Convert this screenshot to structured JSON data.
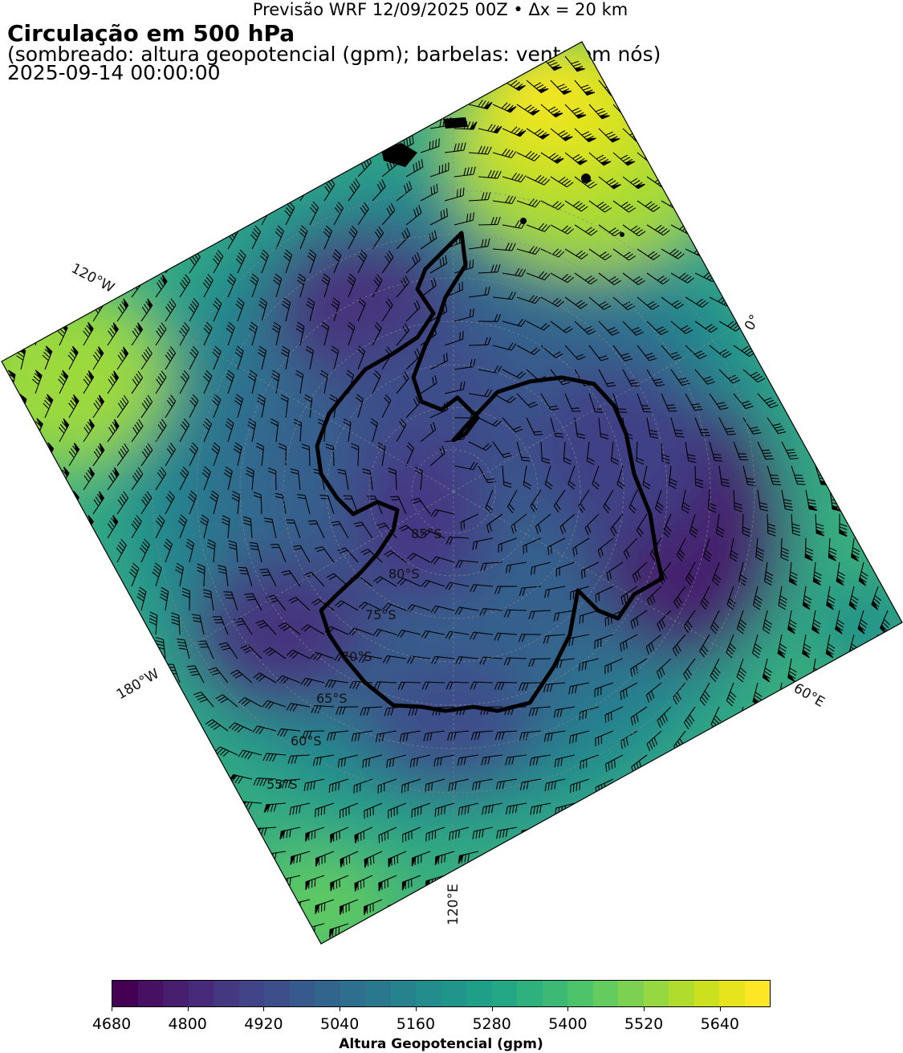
{
  "header": {
    "forecast": "Previsão WRF 12/09/2025 00Z • Δx = 20 km",
    "title": "Circulação em 500 hPa",
    "subtitle": "(sombreado: altura geopotencial (gpm); barbelas: vento em nós)",
    "valid_time": "2025-09-14 00:00:00"
  },
  "map": {
    "projection": "south polar stereographic",
    "longitude_labels": [
      "120°W",
      "0°",
      "60°E",
      "180°W",
      "120°E"
    ],
    "latitude_labels": [
      "85°S",
      "80°S",
      "75°S",
      "70°S",
      "65°S",
      "60°S",
      "55°S"
    ],
    "field": "500 hPa geopotential height",
    "highs": [
      "Atlantic sector (yellow, >5640 gpm)"
    ],
    "lows": [
      "Antarctic Peninsula / Weddell trough",
      "East Antarctica trough near 60°E"
    ]
  },
  "colorbar": {
    "label": "Altura Geopotencial (gpm)",
    "ticks": [
      "4680",
      "4800",
      "4920",
      "5040",
      "5160",
      "5280",
      "5400",
      "5520",
      "5640"
    ],
    "range": [
      4680,
      5720
    ],
    "step": 40,
    "colormap": "viridis",
    "colors": [
      "#440154",
      "#48186a",
      "#472d7b",
      "#424086",
      "#3b528b",
      "#33638d",
      "#2c728e",
      "#26828e",
      "#21918c",
      "#1fa088",
      "#28ae80",
      "#3fbc73",
      "#5ec962",
      "#84d44b",
      "#addc30",
      "#d8e219",
      "#fde725"
    ]
  }
}
